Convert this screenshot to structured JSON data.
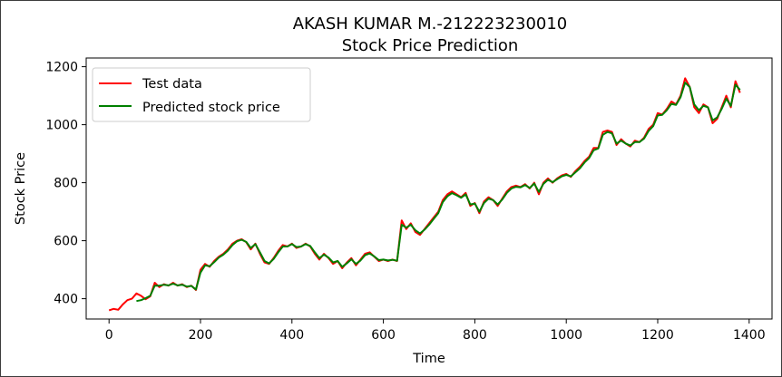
{
  "chart_data": {
    "type": "line",
    "title_line1": "AKASH KUMAR M.-212223230010",
    "title_line2": "Stock Price Prediction",
    "xlabel": "Time",
    "ylabel": "Stock Price",
    "xlim": [
      -50,
      1450
    ],
    "ylim": [
      330,
      1230
    ],
    "xticks": [
      0,
      200,
      400,
      600,
      800,
      1000,
      1200,
      1400
    ],
    "yticks": [
      400,
      600,
      800,
      1000,
      1200
    ],
    "legend_position": "upper-left",
    "series": [
      {
        "name": "Test data",
        "color": "#ff0000",
        "x": [
          0,
          10,
          20,
          30,
          40,
          50,
          60,
          70,
          80,
          90,
          100,
          110,
          120,
          130,
          140,
          150,
          160,
          170,
          180,
          190,
          200,
          210,
          220,
          230,
          240,
          250,
          260,
          270,
          280,
          290,
          300,
          310,
          320,
          330,
          340,
          350,
          360,
          370,
          380,
          390,
          400,
          410,
          420,
          430,
          440,
          450,
          460,
          470,
          480,
          490,
          500,
          510,
          520,
          530,
          540,
          550,
          560,
          570,
          580,
          590,
          600,
          610,
          620,
          630,
          640,
          650,
          660,
          670,
          680,
          690,
          700,
          710,
          720,
          730,
          740,
          750,
          760,
          770,
          780,
          790,
          800,
          810,
          820,
          830,
          840,
          850,
          860,
          870,
          880,
          890,
          900,
          910,
          920,
          930,
          940,
          950,
          960,
          970,
          980,
          990,
          1000,
          1010,
          1020,
          1030,
          1040,
          1050,
          1060,
          1070,
          1080,
          1090,
          1100,
          1110,
          1120,
          1130,
          1140,
          1150,
          1160,
          1170,
          1180,
          1190,
          1200,
          1210,
          1220,
          1230,
          1240,
          1250,
          1260,
          1270,
          1280,
          1290,
          1300,
          1310,
          1320,
          1330,
          1340,
          1350,
          1360,
          1370,
          1380
        ],
        "values": [
          360,
          365,
          362,
          380,
          395,
          400,
          418,
          410,
          398,
          408,
          455,
          440,
          450,
          445,
          455,
          445,
          450,
          440,
          445,
          430,
          500,
          520,
          510,
          530,
          545,
          555,
          570,
          590,
          600,
          605,
          595,
          570,
          590,
          555,
          525,
          520,
          540,
          565,
          585,
          580,
          590,
          575,
          580,
          590,
          580,
          555,
          535,
          555,
          540,
          520,
          530,
          505,
          525,
          540,
          515,
          535,
          555,
          560,
          545,
          530,
          535,
          530,
          535,
          530,
          670,
          640,
          660,
          630,
          620,
          640,
          660,
          680,
          700,
          740,
          760,
          770,
          760,
          750,
          765,
          720,
          730,
          695,
          735,
          750,
          740,
          720,
          745,
          770,
          785,
          790,
          785,
          795,
          780,
          800,
          760,
          800,
          815,
          800,
          815,
          825,
          830,
          820,
          840,
          855,
          875,
          890,
          920,
          920,
          975,
          980,
          975,
          930,
          950,
          935,
          925,
          945,
          940,
          955,
          985,
          1000,
          1040,
          1035,
          1055,
          1080,
          1070,
          1100,
          1160,
          1130,
          1060,
          1040,
          1070,
          1060,
          1005,
          1020,
          1060,
          1100,
          1060,
          1150,
          1110
        ]
      },
      {
        "name": "Predicted stock price",
        "color": "#008000",
        "x": [
          60,
          70,
          80,
          90,
          100,
          110,
          120,
          130,
          140,
          150,
          160,
          170,
          180,
          190,
          200,
          210,
          220,
          230,
          240,
          250,
          260,
          270,
          280,
          290,
          300,
          310,
          320,
          330,
          340,
          350,
          360,
          370,
          380,
          390,
          400,
          410,
          420,
          430,
          440,
          450,
          460,
          470,
          480,
          490,
          500,
          510,
          520,
          530,
          540,
          550,
          560,
          570,
          580,
          590,
          600,
          610,
          620,
          630,
          640,
          650,
          660,
          670,
          680,
          690,
          700,
          710,
          720,
          730,
          740,
          750,
          760,
          770,
          780,
          790,
          800,
          810,
          820,
          830,
          840,
          850,
          860,
          870,
          880,
          890,
          900,
          910,
          920,
          930,
          940,
          950,
          960,
          970,
          980,
          990,
          1000,
          1010,
          1020,
          1030,
          1040,
          1050,
          1060,
          1070,
          1080,
          1090,
          1100,
          1110,
          1120,
          1130,
          1140,
          1150,
          1160,
          1170,
          1180,
          1190,
          1200,
          1210,
          1220,
          1230,
          1240,
          1250,
          1260,
          1270,
          1280,
          1290,
          1300,
          1310,
          1320,
          1330,
          1340,
          1350,
          1360,
          1370,
          1380
        ],
        "values": [
          392,
          395,
          402,
          410,
          445,
          445,
          448,
          446,
          452,
          446,
          448,
          442,
          444,
          432,
          490,
          515,
          512,
          526,
          542,
          552,
          566,
          585,
          598,
          603,
          596,
          575,
          588,
          560,
          530,
          522,
          537,
          560,
          580,
          580,
          588,
          578,
          580,
          588,
          582,
          560,
          540,
          552,
          542,
          525,
          530,
          510,
          522,
          536,
          520,
          532,
          550,
          556,
          546,
          533,
          535,
          532,
          534,
          531,
          655,
          645,
          655,
          636,
          625,
          638,
          655,
          675,
          695,
          733,
          753,
          764,
          757,
          748,
          760,
          725,
          728,
          700,
          730,
          745,
          740,
          725,
          742,
          765,
          780,
          786,
          784,
          792,
          782,
          797,
          768,
          796,
          810,
          802,
          812,
          822,
          827,
          822,
          836,
          850,
          870,
          885,
          912,
          918,
          965,
          975,
          970,
          935,
          945,
          935,
          928,
          940,
          940,
          952,
          978,
          995,
          1032,
          1034,
          1050,
          1072,
          1068,
          1095,
          1145,
          1130,
          1070,
          1050,
          1065,
          1060,
          1015,
          1025,
          1055,
          1090,
          1065,
          1138,
          1120
        ]
      }
    ]
  }
}
